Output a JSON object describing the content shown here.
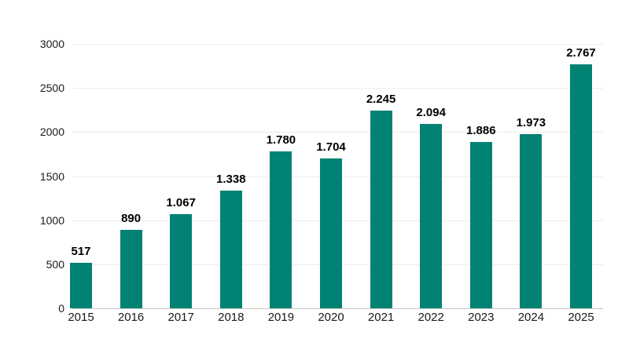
{
  "chart_data": {
    "type": "bar",
    "categories": [
      "2015",
      "2016",
      "2017",
      "2018",
      "2019",
      "2020",
      "2021",
      "2022",
      "2023",
      "2024",
      "2025"
    ],
    "values": [
      517,
      890,
      1067,
      1338,
      1780,
      1704,
      2245,
      2094,
      1886,
      1973,
      2767
    ],
    "value_labels": [
      "517",
      "890",
      "1.067",
      "1.338",
      "1.780",
      "1.704",
      "2.245",
      "2.094",
      "1.886",
      "1.973",
      "2.767"
    ],
    "xlabel": "",
    "ylabel": "",
    "ylim": [
      0,
      3000
    ],
    "y_ticks": [
      0,
      500,
      1000,
      1500,
      2000,
      2500,
      3000
    ],
    "y_tick_labels": [
      "0",
      "500",
      "1000",
      "1500",
      "2000",
      "2500",
      "3000"
    ],
    "grid": "horizontal-only",
    "legend": "none",
    "colors": {
      "bar": "#028273",
      "value_label": "#000000",
      "tick_label": "#1a1a1a",
      "gridline": "#ececec",
      "baseline": "#c6c6c6",
      "background": "#ffffff"
    }
  }
}
